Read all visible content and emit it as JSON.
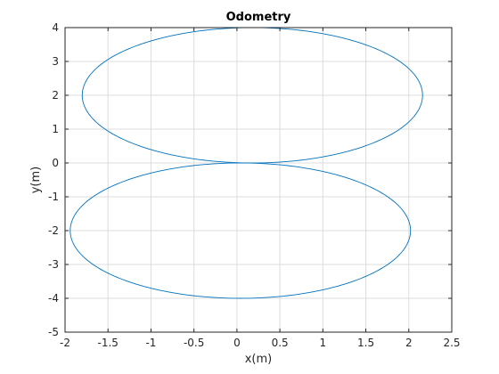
{
  "chart_data": {
    "type": "line",
    "title": "Odometry",
    "xlabel": "x(m)",
    "ylabel": "y(m)",
    "xlim": [
      -2,
      2.5
    ],
    "ylim": [
      -5,
      4
    ],
    "grid": true,
    "x_ticks": [
      -2,
      -1.5,
      -1,
      -0.5,
      0,
      0.5,
      1,
      1.5,
      2,
      2.5
    ],
    "x_tick_labels": [
      "-2",
      "-1.5",
      "-1",
      "-0.5",
      "0",
      "0.5",
      "1",
      "1.5",
      "2",
      "2.5"
    ],
    "y_ticks": [
      -5,
      -4,
      -3,
      -2,
      -1,
      0,
      1,
      2,
      3,
      4
    ],
    "y_tick_labels": [
      "-5",
      "-4",
      "-3",
      "-2",
      "-1",
      "0",
      "1",
      "2",
      "3",
      "4"
    ],
    "series": [
      {
        "color": "#0072BD",
        "shape": "ellipse",
        "center": [
          0.18,
          2.0
        ],
        "radii": [
          1.98,
          2.0
        ]
      },
      {
        "color": "#0072BD",
        "shape": "ellipse",
        "center": [
          0.04,
          -2.0
        ],
        "radii": [
          1.98,
          2.0
        ]
      }
    ]
  }
}
